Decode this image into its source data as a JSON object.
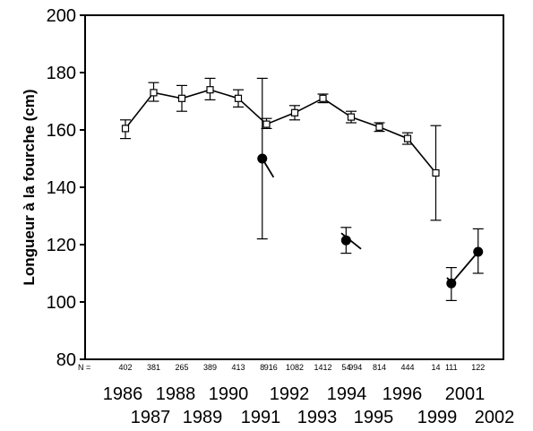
{
  "chart_data": {
    "type": "scatter",
    "title": "",
    "xlabel": "",
    "ylabel": "Longueur à la fourche (cm)",
    "ylim": [
      80,
      200
    ],
    "yticks": [
      80,
      100,
      120,
      140,
      160,
      180,
      200
    ],
    "grid": false,
    "categories": [
      "1986",
      "1987",
      "1988",
      "1989",
      "1990",
      "1991",
      "1992",
      "1993",
      "1994",
      "1995",
      "1996",
      "1999",
      "2001",
      "2002"
    ],
    "n_prefix": "N =",
    "n_labels": [
      {
        "text": "402",
        "x": 1986.0
      },
      {
        "text": "381",
        "x": 1987.0
      },
      {
        "text": "265",
        "x": 1988.0
      },
      {
        "text": "389",
        "x": 1989.0
      },
      {
        "text": "413",
        "x": 1990.0
      },
      {
        "text": "8",
        "x": 1990.85
      },
      {
        "text": "916",
        "x": 1991.15
      },
      {
        "text": "1082",
        "x": 1992.0
      },
      {
        "text": "1412",
        "x": 1993.0
      },
      {
        "text": "54",
        "x": 1993.82
      },
      {
        "text": "994",
        "x": 1994.15
      },
      {
        "text": "814",
        "x": 1995.0
      },
      {
        "text": "444",
        "x": 1996.0
      },
      {
        "text": "14",
        "x": 1997.0
      },
      {
        "text": "111",
        "x": 1997.55
      },
      {
        "text": "122",
        "x": 1998.5
      }
    ],
    "series": [
      {
        "marker": "open-square",
        "connected": true,
        "points": [
          {
            "x": 1986,
            "y": 160.5,
            "low": 157.0,
            "high": 163.5
          },
          {
            "x": 1987,
            "y": 173.0,
            "low": 170.0,
            "high": 176.5
          },
          {
            "x": 1988,
            "y": 171.0,
            "low": 166.5,
            "high": 175.5
          },
          {
            "x": 1989,
            "y": 174.0,
            "low": 170.5,
            "high": 178.0
          },
          {
            "x": 1990,
            "y": 171.0,
            "low": 168.0,
            "high": 174.0
          },
          {
            "x": 1991,
            "y": 162.0,
            "low": 160.5,
            "high": 164.0
          },
          {
            "x": 1992,
            "y": 166.0,
            "low": 163.5,
            "high": 168.5
          },
          {
            "x": 1993,
            "y": 171.0,
            "low": 169.5,
            "high": 172.5
          },
          {
            "x": 1994,
            "y": 164.5,
            "low": 162.5,
            "high": 166.5
          },
          {
            "x": 1995,
            "y": 161.0,
            "low": 159.5,
            "high": 162.5
          },
          {
            "x": 1996,
            "y": 157.0,
            "low": 155.0,
            "high": 159.0
          },
          {
            "x": 1997,
            "y": 145.0,
            "low": 128.5,
            "high": 161.5
          }
        ]
      },
      {
        "marker": "filled-circle",
        "connected": false,
        "points": [
          {
            "x": 1990.85,
            "y": 150.0,
            "low": 122.0,
            "high": 178.0
          },
          {
            "x": 1993.82,
            "y": 121.5,
            "low": 117.0,
            "high": 126.0
          },
          {
            "x": 1997.55,
            "y": 106.5,
            "low": 100.5,
            "high": 112.0
          },
          {
            "x": 1998.5,
            "y": 117.5,
            "low": 110.0,
            "high": 125.5
          }
        ],
        "trend_segments": [
          {
            "x1": 1990.85,
            "y1": 150.0,
            "x2": 1991.25,
            "y2": 143.5
          },
          {
            "x1": 1993.65,
            "y1": 124.0,
            "x2": 1994.35,
            "y2": 118.5
          },
          {
            "x1": 1997.4,
            "y1": 108.5,
            "x2": 1997.55,
            "y2": 106.5
          },
          {
            "x1": 1997.55,
            "y1": 106.5,
            "x2": 1998.5,
            "y2": 117.5
          }
        ]
      }
    ]
  }
}
